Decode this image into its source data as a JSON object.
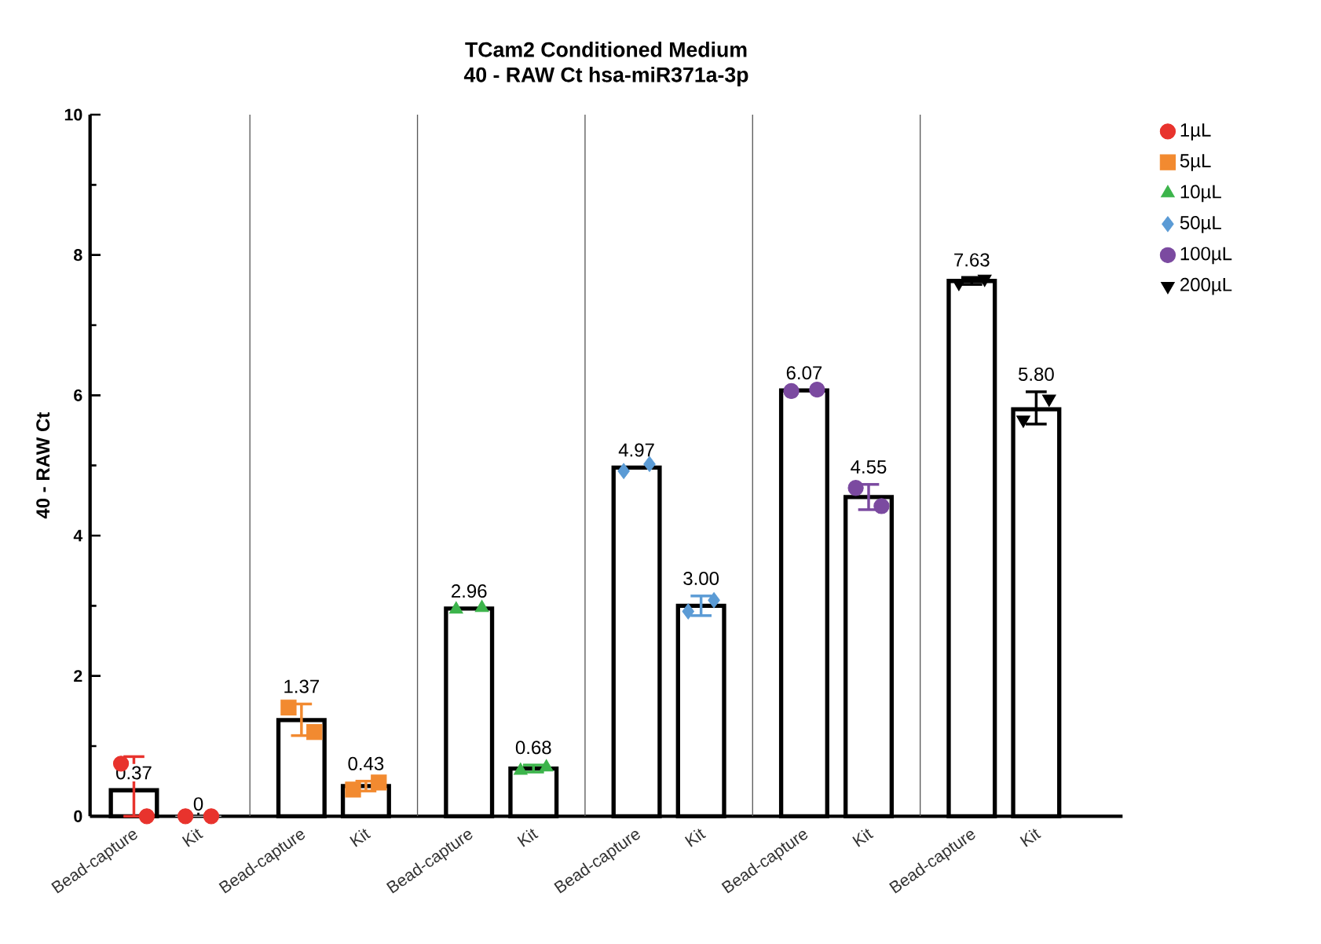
{
  "chart_data": {
    "type": "bar",
    "title": "TCam2 Conditioned Medium",
    "subtitle": "40 - RAW Ct hsa-miR371a-3p",
    "ylabel": "40 - RAW Ct",
    "categories": [
      "Bead-capture",
      "Kit",
      "Bead-capture",
      "Kit",
      "Bead-capture",
      "Kit",
      "Bead-capture",
      "Kit",
      "Bead-capture",
      "Kit",
      "Bead-capture",
      "Kit"
    ],
    "ylim": [
      0,
      10
    ],
    "yticks": [
      0,
      2,
      4,
      6,
      8,
      10
    ],
    "legend": "top right",
    "series": [
      {
        "color": "#ffffff",
        "values": [
          0.37,
          0,
          1.37,
          0.43,
          2.96,
          0.68,
          4.97,
          3.0,
          6.07,
          4.55,
          7.63,
          5.8
        ],
        "errors": [
          [
            0,
            0.85
          ],
          null,
          [
            1.15,
            1.6
          ],
          [
            0.36,
            0.5
          ],
          null,
          [
            0.63,
            0.73
          ],
          null,
          [
            2.86,
            3.14
          ],
          null,
          [
            4.37,
            4.73
          ],
          [
            7.58,
            7.68
          ],
          [
            5.59,
            6.05
          ]
        ],
        "value_labels": [
          "0.37",
          "0",
          "1.37",
          "0.43",
          "2.96",
          "0.68",
          "4.97",
          "3.00",
          "6.07",
          "4.55",
          "7.63",
          "5.80"
        ]
      },
      {
        "type": "scatter",
        "name": "1µL",
        "color": "#e8332d",
        "marker": "circle",
        "values": [
          0.75,
          0,
          null,
          null,
          null,
          null,
          null,
          null,
          null,
          null,
          null,
          null
        ]
      },
      {
        "type": "scatter",
        "color": "#e8332d",
        "marker": "circle",
        "values": [
          0,
          0,
          null,
          null,
          null,
          null,
          null,
          null,
          null,
          null,
          null,
          null
        ]
      },
      {
        "type": "scatter",
        "name": "5µL",
        "color": "#f28a30",
        "marker": "square",
        "values": [
          null,
          null,
          1.55,
          0.38,
          null,
          null,
          null,
          null,
          null,
          null,
          null,
          null
        ]
      },
      {
        "type": "scatter",
        "color": "#f28a30",
        "marker": "square",
        "values": [
          null,
          null,
          1.2,
          0.48,
          null,
          null,
          null,
          null,
          null,
          null,
          null,
          null
        ]
      },
      {
        "type": "scatter",
        "name": "10µL",
        "color": "#3cb44b",
        "marker": "triangle",
        "values": [
          null,
          null,
          null,
          null,
          2.95,
          0.65,
          null,
          null,
          null,
          null,
          null,
          null
        ]
      },
      {
        "type": "scatter",
        "color": "#3cb44b",
        "marker": "triangle",
        "values": [
          null,
          null,
          null,
          null,
          2.97,
          0.7,
          null,
          null,
          null,
          null,
          null,
          null
        ]
      },
      {
        "type": "scatter",
        "name": "50µL",
        "color": "#5b9bd5",
        "marker": "diamond",
        "values": [
          null,
          null,
          null,
          null,
          null,
          null,
          4.92,
          2.92,
          null,
          null,
          null,
          null
        ]
      },
      {
        "type": "scatter",
        "color": "#5b9bd5",
        "marker": "diamond",
        "values": [
          null,
          null,
          null,
          null,
          null,
          null,
          5.02,
          3.08,
          null,
          null,
          null,
          null
        ]
      },
      {
        "type": "scatter",
        "name": "100µL",
        "color": "#7b4aa0",
        "marker": "circle",
        "values": [
          null,
          null,
          null,
          null,
          null,
          null,
          null,
          null,
          6.06,
          4.68,
          null,
          null
        ]
      },
      {
        "type": "scatter",
        "color": "#7b4aa0",
        "marker": "circle",
        "values": [
          null,
          null,
          null,
          null,
          null,
          null,
          null,
          null,
          6.08,
          4.42,
          null,
          null
        ]
      },
      {
        "type": "scatter",
        "name": "200µL",
        "color": "#000000",
        "marker": "triangle-down",
        "values": [
          null,
          null,
          null,
          null,
          null,
          null,
          null,
          null,
          null,
          null,
          7.6,
          5.65
        ]
      },
      {
        "type": "scatter",
        "color": "#000000",
        "marker": "triangle-down",
        "values": [
          null,
          null,
          null,
          null,
          null,
          null,
          null,
          null,
          null,
          null,
          7.66,
          5.95
        ]
      }
    ]
  }
}
